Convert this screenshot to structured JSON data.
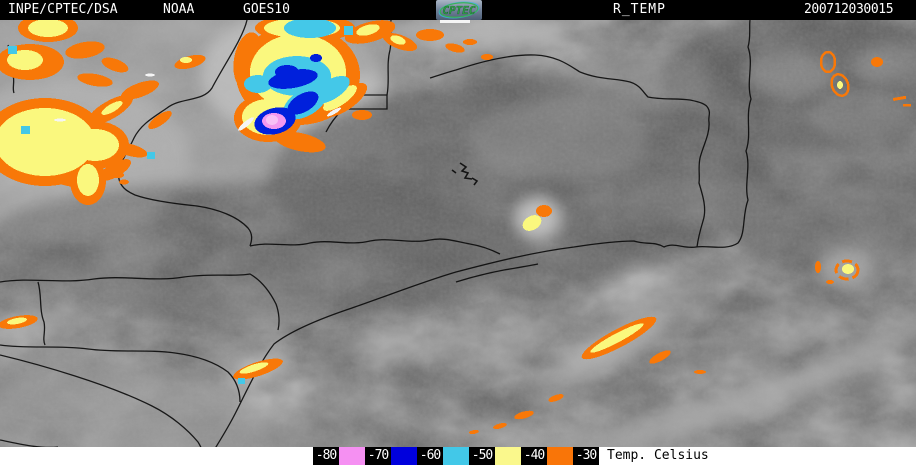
{
  "header": {
    "agency": "INPE/CPTEC/DSA",
    "satellite_org": "NOAA",
    "satellite": "GOES10",
    "logo_text": "CPTEC",
    "product": "R_TEMP",
    "timestamp": "200712030015",
    "bg_color": "#000000",
    "fg_color": "#ffffff"
  },
  "legend": {
    "title": "Temp. Celsius",
    "items": [
      {
        "label": "-80",
        "swatch_color": "#f590f2"
      },
      {
        "label": "-70",
        "swatch_color": "#0000dd"
      },
      {
        "label": "-60",
        "swatch_color": "#42c8e8"
      },
      {
        "label": "-50",
        "swatch_color": "#faf88c"
      },
      {
        "label": "-40",
        "swatch_color": "#f97508"
      },
      {
        "label": "-30",
        "swatch_color": null
      }
    ],
    "label_bg": "#000000",
    "label_fg": "#ffffff",
    "title_color": "#000000",
    "strip_bg": "#ffffff"
  },
  "map": {
    "kind": "GOES-10 infrared enhanced-temperature satellite image",
    "palette": {
      "base_gray": "#6f6f6f",
      "cloud_light_gray": "#c8c8c8",
      "border_line": "#0a0a0a",
      "overlay_orange": "#f87808",
      "overlay_yellow": "#faf87e",
      "overlay_cyan": "#44c8e8",
      "overlay_blue": "#0020dc",
      "overlay_pink": "#f398f0"
    }
  }
}
